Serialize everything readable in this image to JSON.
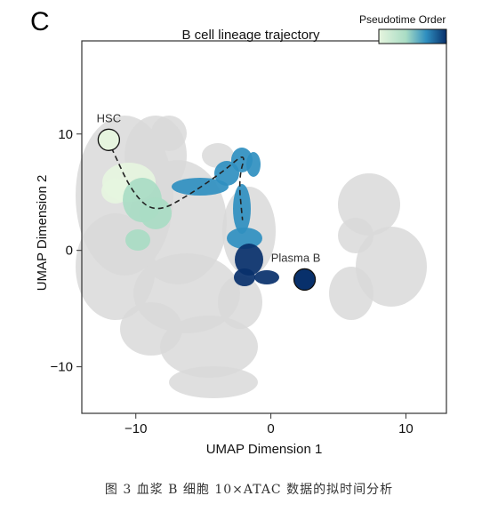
{
  "panel_letter": "C",
  "caption": "图 3  血浆 B 细胞 10×ATAC 数据的拟时间分析",
  "chart_data": {
    "type": "scatter",
    "title": "B cell lineage trajectory",
    "xlabel": "UMAP Dimension 1",
    "ylabel": "UMAP Dimension 2",
    "xlim": [
      -14,
      13
    ],
    "ylim": [
      -14,
      18
    ],
    "x_ticks": [
      -10,
      0,
      10
    ],
    "y_ticks": [
      -10,
      0,
      10
    ],
    "x_tick_labels": [
      "−10",
      "0",
      "10"
    ],
    "y_tick_labels": [
      "−10",
      "0",
      "10"
    ],
    "grid": false,
    "legend": {
      "title": "Pseudotime Order",
      "placement": "top-right",
      "colors": [
        "#e6f5df",
        "#a9dcc4",
        "#2f8fc0",
        "#08306b"
      ]
    },
    "annotations": [
      {
        "label": "HSC",
        "x": -12.0,
        "y": 9.5,
        "marker_color": "#e6f5df"
      },
      {
        "label": "Plasma B",
        "x": 2.5,
        "y": -2.5,
        "marker_color": "#08306b"
      }
    ],
    "trajectory": {
      "style": "dashed",
      "points": [
        [
          -11.8,
          8.8
        ],
        [
          -10.2,
          4.8
        ],
        [
          -8.5,
          3.2
        ],
        [
          -6.0,
          4.8
        ],
        [
          -3.5,
          6.8
        ],
        [
          -1.8,
          8.5
        ],
        [
          -2.4,
          6.2
        ],
        [
          -2.1,
          2.6
        ]
      ]
    },
    "background_color": "#d9d9d9"
  }
}
